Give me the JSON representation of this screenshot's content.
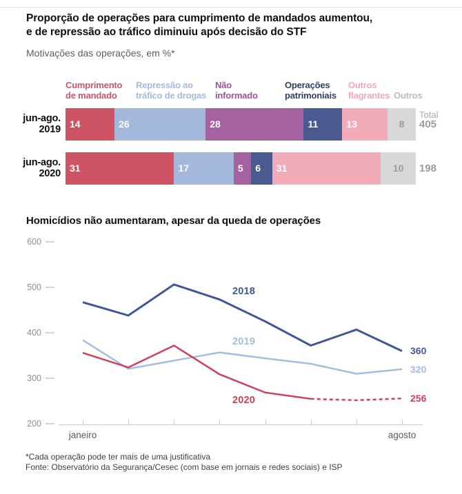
{
  "header": {
    "title_line1": "Proporção de operações para cumprimento de mandados aumentou,",
    "title_line2": "e de repressão ao tráfico diminuiu após decisão do STF",
    "subtitle": "Motivações das operações, em %*"
  },
  "chart_data": [
    {
      "type": "bar",
      "variant": "horizontal-stacked",
      "unit": "%",
      "categories": [
        "Cumprimento de mandado",
        "Repressão ao tráfico de drogas",
        "Não informado",
        "Operações patrimoniais",
        "Outros flagrantes",
        "Outros"
      ],
      "legend": [
        {
          "lines": [
            "Cumprimento",
            "de mandado"
          ],
          "color": "#c95669"
        },
        {
          "lines": [
            "Repressão ao",
            "tráfico de drogas"
          ],
          "color": "#a6bade"
        },
        {
          "lines": [
            "Não",
            "informado"
          ],
          "color": "#9f519b"
        },
        {
          "lines": [
            "Operações",
            "patrimoniais"
          ],
          "color": "#333e63"
        },
        {
          "lines": [
            "Outros",
            "flagrantes"
          ],
          "color": "#f2a9b8"
        },
        {
          "lines": [
            "Outros"
          ],
          "color": "#b9bcc2"
        }
      ],
      "segment_colors": [
        "#cd5365",
        "#a4b8dc",
        "#a661a1",
        "#4a5a91",
        "#f2abb9",
        "#d8d8d8"
      ],
      "value_colors": [
        "#ffffff",
        "#ffffff",
        "#ffffff",
        "#ffffff",
        "#ffffff",
        "#9b9b9b"
      ],
      "total_header": "Total",
      "rows": [
        {
          "label_lines": [
            "jun-ago.",
            "2019"
          ],
          "values": [
            14,
            26,
            28,
            11,
            13,
            8
          ],
          "total": "405"
        },
        {
          "label_lines": [
            "jun-ago.",
            "2020"
          ],
          "values": [
            31,
            17,
            5,
            6,
            31,
            10
          ],
          "total": "198"
        }
      ]
    },
    {
      "type": "line",
      "title": "Homicídios não aumentaram, apesar da queda de operações",
      "x_axis": {
        "first_label": "janeiro",
        "last_label": "agosto",
        "points": 8
      },
      "y_ticks": [
        600,
        500,
        400,
        300,
        200
      ],
      "ylim": [
        200,
        600
      ],
      "grid": false,
      "series": [
        {
          "name": "2018",
          "color": "#3f5796",
          "values": [
            467,
            438,
            506,
            473,
            425,
            372,
            407,
            360
          ],
          "end_label": "360"
        },
        {
          "name": "2019",
          "color": "#a3bce3",
          "values": [
            384,
            321,
            339,
            357,
            344,
            332,
            310,
            320
          ],
          "end_label": "320"
        },
        {
          "name": "2020",
          "color": "#d04058",
          "values": [
            356,
            324,
            372,
            309,
            269,
            255,
            252,
            256
          ],
          "end_label": "256",
          "dashed_from_index": 5
        }
      ]
    }
  ],
  "footnotes": {
    "line1": "*Cada operação pode ter mais de uma justificativa",
    "line2": "Fonte: Observatório da Segurança/Cesec (com base em jornais e redes sociais) e ISP"
  }
}
